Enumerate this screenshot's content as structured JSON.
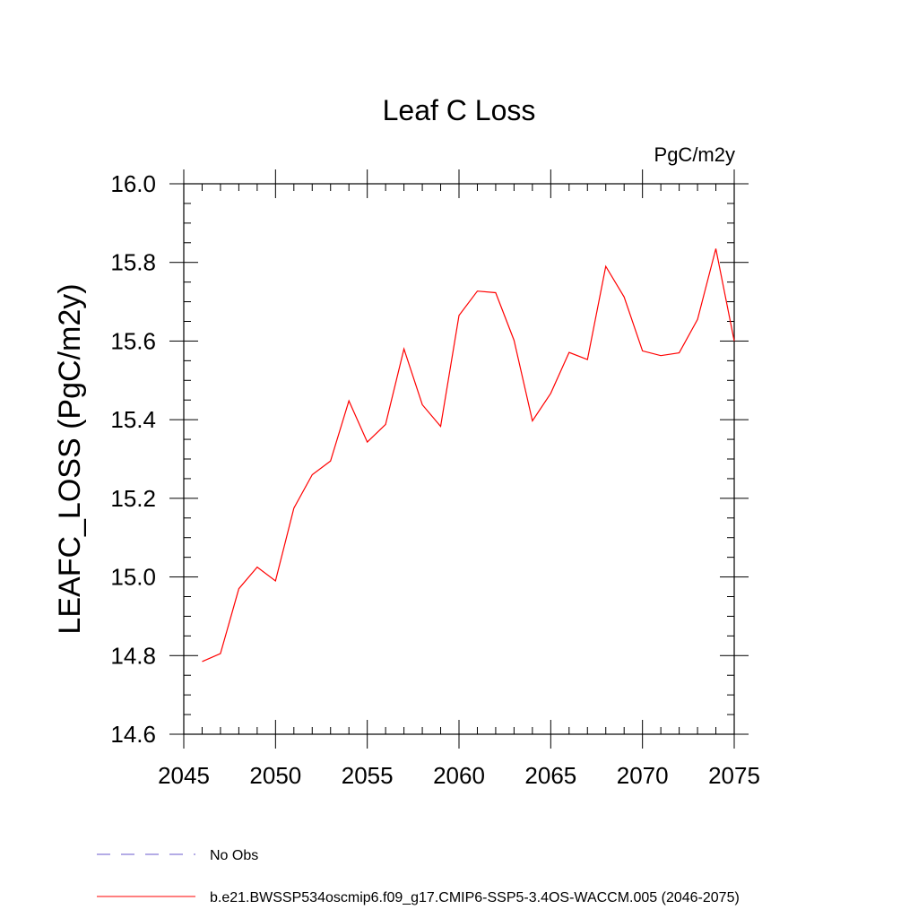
{
  "chart_data": {
    "type": "line",
    "title": "Leaf C Loss",
    "units_label": "PgC/m2y",
    "ylabel": "LEAFC_LOSS  (PgC/m2y)",
    "xlabel": "",
    "xlim": [
      2045,
      2075
    ],
    "ylim": [
      14.6,
      16.0
    ],
    "x_ticks": [
      2045,
      2050,
      2055,
      2060,
      2065,
      2070,
      2075
    ],
    "x_tick_labels": [
      "2045",
      "2050",
      "2055",
      "2060",
      "2065",
      "2070",
      "2075"
    ],
    "y_ticks": [
      14.6,
      14.8,
      15.0,
      15.2,
      15.4,
      15.6,
      15.8,
      16.0
    ],
    "y_tick_labels": [
      "14.6",
      "14.8",
      "15.0",
      "15.2",
      "15.4",
      "15.6",
      "15.8",
      "16.0"
    ],
    "grid": false,
    "legend_position": "bottom",
    "x": [
      2046,
      2047,
      2048,
      2049,
      2050,
      2051,
      2052,
      2053,
      2054,
      2055,
      2056,
      2057,
      2058,
      2059,
      2060,
      2061,
      2062,
      2063,
      2064,
      2065,
      2066,
      2067,
      2068,
      2069,
      2070,
      2071,
      2072,
      2073,
      2074,
      2075
    ],
    "series": [
      {
        "name": "b.e21.BWSSP534oscmip6.f09_g17.CMIP6-SSP5-3.4OS-WACCM.005 (2046-2075)",
        "color": "#ff0000",
        "style": "solid",
        "values": [
          14.785,
          14.805,
          14.97,
          15.025,
          14.99,
          15.175,
          15.26,
          15.295,
          15.448,
          15.343,
          15.388,
          15.58,
          15.438,
          15.383,
          15.665,
          15.727,
          15.723,
          15.602,
          15.397,
          15.467,
          15.571,
          15.553,
          15.79,
          15.712,
          15.575,
          15.563,
          15.57,
          15.655,
          15.835,
          15.6
        ]
      }
    ],
    "legend": [
      {
        "label": "No Obs",
        "color": "#6a5acd",
        "style": "dashed"
      },
      {
        "label": "b.e21.BWSSP534oscmip6.f09_g17.CMIP6-SSP5-3.4OS-WACCM.005 (2046-2075)",
        "color": "#ff0000",
        "style": "solid"
      }
    ]
  }
}
